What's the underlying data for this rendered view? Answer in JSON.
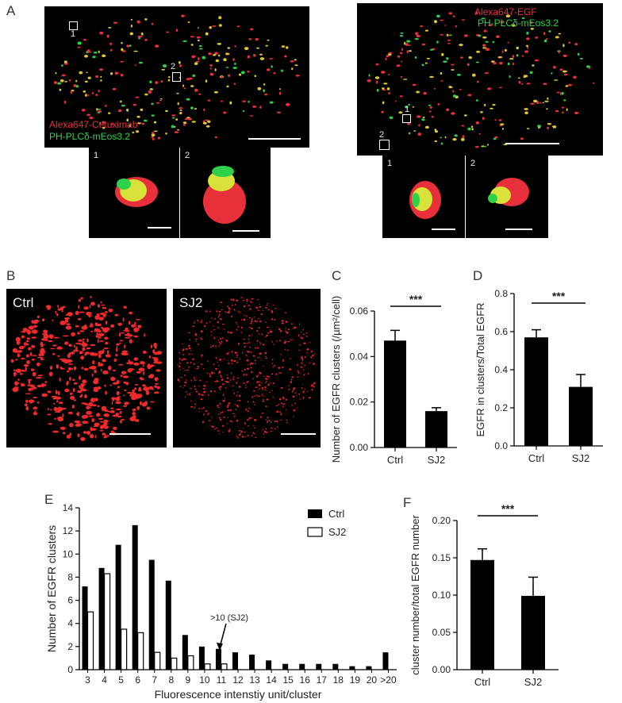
{
  "panels": {
    "A": {
      "letter": "A",
      "left": {
        "labels": [
          "Alexa647-Cetuximab",
          "PH-PLCδ-mEos3.2"
        ],
        "roi_labels": [
          "1",
          "2"
        ],
        "inset_labels": [
          "1",
          "2"
        ]
      },
      "right": {
        "labels": [
          "Alexa647-EGF",
          "PH-PLCδ-mEos3.2"
        ],
        "roi_labels": [
          "1",
          "2"
        ],
        "inset_labels": [
          "1",
          "2"
        ]
      }
    },
    "B": {
      "letter": "B",
      "conditions": [
        "Ctrl",
        "SJ2"
      ]
    },
    "C": {
      "letter": "C"
    },
    "D": {
      "letter": "D"
    },
    "E": {
      "letter": "E"
    },
    "F": {
      "letter": "F"
    }
  },
  "colors": {
    "red_channel": "#e8303a",
    "green_channel": "#2fd14a",
    "bar_fill": "#000000",
    "bar_open": "#ffffff"
  },
  "chart_data": [
    {
      "id": "C",
      "type": "bar",
      "categories": [
        "Ctrl",
        "SJ2"
      ],
      "values": [
        0.047,
        0.016
      ],
      "errors": [
        0.0045,
        0.0015
      ],
      "ylabel": "Number of EGFR clusters (/µm²/cell)",
      "ylim": [
        0.0,
        0.06
      ],
      "yticks": [
        "0.00",
        "0.02",
        "0.04",
        "0.06"
      ],
      "yticks_num": [
        0,
        0.02,
        0.04,
        0.06
      ],
      "significance": "***"
    },
    {
      "id": "D",
      "type": "bar",
      "categories": [
        "Ctrl",
        "SJ2"
      ],
      "values": [
        0.57,
        0.31
      ],
      "errors": [
        0.04,
        0.065
      ],
      "ylabel": "EGFR in clusters/Total EGFR",
      "ylim": [
        0.0,
        0.8
      ],
      "yticks": [
        "0.0",
        "0.2",
        "0.4",
        "0.6",
        "0.8"
      ],
      "yticks_num": [
        0,
        0.2,
        0.4,
        0.6,
        0.8
      ],
      "significance": "***"
    },
    {
      "id": "E",
      "type": "bar",
      "categories": [
        "3",
        "4",
        "5",
        "6",
        "7",
        "8",
        "9",
        "10",
        "11",
        "12",
        "13",
        "14",
        "15",
        "16",
        "17",
        "18",
        "19",
        "20",
        ">20"
      ],
      "series": [
        {
          "name": "Ctrl",
          "values": [
            7.2,
            8.8,
            10.8,
            12.5,
            9.5,
            7.7,
            3.0,
            2.0,
            1.8,
            1.5,
            1.3,
            0.8,
            0.5,
            0.5,
            0.5,
            0.5,
            0.3,
            0.3,
            1.5
          ]
        },
        {
          "name": "SJ2",
          "values": [
            5.0,
            8.3,
            3.5,
            3.2,
            1.5,
            1.0,
            1.2,
            0.5,
            0.5,
            0,
            0,
            0,
            0,
            0,
            0,
            0,
            0,
            0,
            0
          ]
        }
      ],
      "xlabel": "Fluorescence intenstiy unit/cluster",
      "ylabel": "Number of EGFR clusters",
      "ylim": [
        0,
        14
      ],
      "yticks": [
        "0",
        "2",
        "4",
        "6",
        "8",
        "10",
        "12",
        "14"
      ],
      "yticks_num": [
        0,
        2,
        4,
        6,
        8,
        10,
        12,
        14
      ],
      "annotation": ">10 (SJ2)",
      "legend": "top-right"
    },
    {
      "id": "F",
      "type": "bar",
      "categories": [
        "Ctrl",
        "SJ2"
      ],
      "values": [
        0.147,
        0.099
      ],
      "errors": [
        0.015,
        0.025
      ],
      "ylabel": "cluster number/total EGFR number",
      "ylim": [
        0.0,
        0.2
      ],
      "yticks": [
        "0.00",
        "0.05",
        "0.10",
        "0.15",
        "0.20"
      ],
      "yticks_num": [
        0,
        0.05,
        0.1,
        0.15,
        0.2
      ],
      "significance": "***"
    }
  ]
}
